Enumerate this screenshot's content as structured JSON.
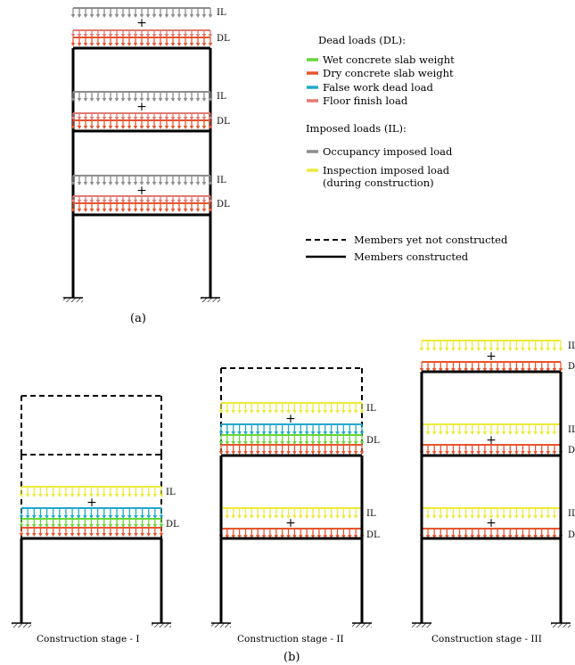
{
  "colors": {
    "wet_concrete": "#66d63a",
    "dry_concrete": "#e8552f",
    "false_work": "#21a8cc",
    "floor_finish": "#e07b74",
    "occupancy": "#8c8c8c",
    "inspection": "#ecea3c",
    "member": "#000000"
  },
  "load_labels": {
    "imposed": "IL",
    "dead": "DL",
    "plus": "+"
  },
  "legend": {
    "dead_heading": "Dead loads (DL):",
    "dead_items": [
      {
        "label": "Wet concrete slab weight",
        "color": "#66d63a"
      },
      {
        "label": "Dry concrete slab weight",
        "color": "#e8552f"
      },
      {
        "label": "False work dead load",
        "color": "#21a8cc"
      },
      {
        "label": "Floor finish load",
        "color": "#e07b74"
      }
    ],
    "imposed_heading": "Imposed loads (IL):",
    "imposed_items": [
      {
        "label": "Occupancy imposed load",
        "color": "#8c8c8c"
      },
      {
        "label": "Inspection imposed load",
        "label2": "(during construction)",
        "color": "#ecea3c"
      }
    ],
    "line_items": [
      {
        "label": "Members yet not constructed",
        "style": "dashed"
      },
      {
        "label": "Members constructed",
        "style": "solid"
      }
    ]
  },
  "captions": {
    "a": "(a)",
    "b": "(b)"
  },
  "stages": [
    {
      "caption": "Construction stage - I"
    },
    {
      "caption": "Construction stage - II"
    },
    {
      "caption": "Construction stage - III"
    }
  ]
}
